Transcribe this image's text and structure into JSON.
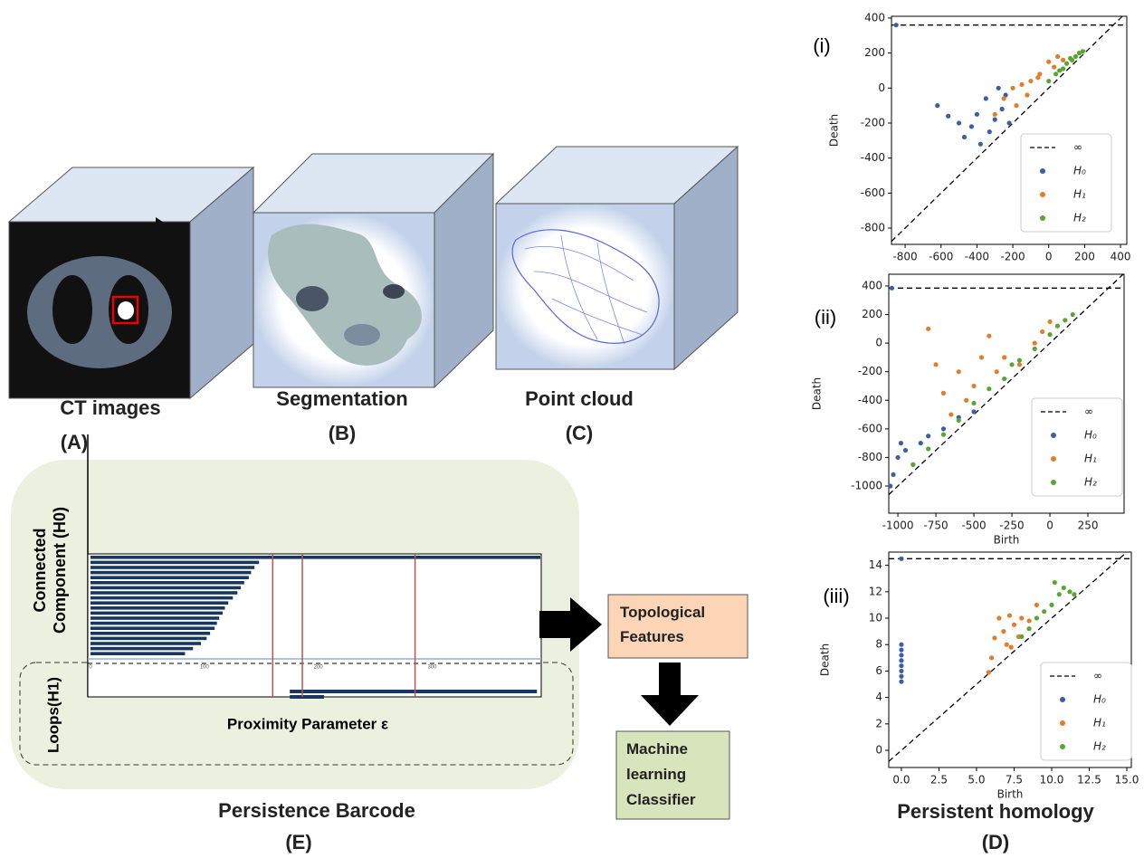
{
  "panels": [
    {
      "title": "CT images",
      "label": "(A)"
    },
    {
      "title": "Segmentation",
      "label": "(B)"
    },
    {
      "title": "Point cloud",
      "label": "(C)"
    }
  ],
  "barcode_panel": {
    "title": "Persistence Barcode",
    "label": "(E)",
    "y_label_h0": [
      "Connected",
      "Component (H0)"
    ],
    "y_label_h1": "Loops(H1)",
    "x_label": "Proximity Parameter ε"
  },
  "flow": {
    "features": [
      "Topological",
      "Features"
    ],
    "classifier": [
      "Machine",
      "learning",
      "Classifier"
    ]
  },
  "homology_panel": {
    "title": "Persistent homology",
    "label": "(D)"
  },
  "chart_data": [
    {
      "type": "scatter",
      "label": "(i)",
      "ylabel": "Death",
      "xlim": [
        -876,
        435
      ],
      "ylim": [
        -893,
        410
      ],
      "xticks": [
        -800,
        -600,
        -400,
        -200,
        0,
        200,
        400
      ],
      "yticks": [
        -800,
        -600,
        -400,
        -200,
        0,
        200,
        400
      ],
      "infinity": {
        "name": "∞",
        "value": 360
      },
      "series": [
        {
          "name": "H₀",
          "color": "#3b5ea8",
          "x": [
            -850,
            -620,
            -560,
            -500,
            -470,
            -430,
            -400,
            -380,
            -350,
            -330,
            -300,
            -280,
            -260,
            -240,
            -220
          ],
          "values": [
            360,
            -100,
            -160,
            -200,
            -280,
            -220,
            -150,
            -320,
            -60,
            -250,
            -180,
            0,
            -120,
            -40,
            -200
          ]
        },
        {
          "name": "H₁",
          "color": "#e27d2c",
          "x": [
            -300,
            -250,
            -200,
            -150,
            -100,
            -50,
            0,
            30,
            50,
            80,
            -180,
            -120,
            -60
          ],
          "values": [
            -150,
            -60,
            0,
            20,
            40,
            80,
            150,
            120,
            180,
            160,
            -100,
            -40,
            60
          ]
        },
        {
          "name": "H₂",
          "color": "#58a532",
          "x": [
            0,
            40,
            80,
            100,
            130,
            150,
            170,
            190,
            60,
            120
          ],
          "values": [
            40,
            80,
            110,
            140,
            160,
            180,
            200,
            210,
            100,
            170
          ]
        }
      ]
    },
    {
      "type": "scatter",
      "label": "(ii)",
      "ylabel": "Death",
      "xlabel": "Birth",
      "xlim": [
        -1060,
        488
      ],
      "ylim": [
        -1190,
        482
      ],
      "xticks": [
        -1000,
        -750,
        -500,
        -250,
        0,
        250
      ],
      "yticks": [
        -1000,
        -800,
        -600,
        -400,
        -200,
        0,
        200,
        400
      ],
      "infinity": {
        "name": "∞",
        "value": 385
      },
      "series": [
        {
          "name": "H₀",
          "color": "#3b5ea8",
          "x": [
            -1050,
            -1030,
            -1000,
            -980,
            -950,
            -900,
            -850,
            -800,
            -700,
            -600,
            -500,
            -1040
          ],
          "values": [
            -1000,
            -920,
            -800,
            -700,
            -750,
            -850,
            -700,
            -650,
            -600,
            -520,
            -480,
            385
          ]
        },
        {
          "name": "H₁",
          "color": "#e27d2c",
          "x": [
            -800,
            -750,
            -700,
            -650,
            -600,
            -500,
            -450,
            -400,
            -350,
            -300,
            -200,
            -100,
            -50,
            0,
            -550
          ],
          "values": [
            100,
            -150,
            -350,
            -500,
            -200,
            -300,
            -100,
            50,
            -200,
            -100,
            -150,
            0,
            80,
            150,
            -400
          ]
        },
        {
          "name": "H₂",
          "color": "#58a532",
          "x": [
            -900,
            -800,
            -700,
            -600,
            -500,
            -400,
            -300,
            -200,
            -100,
            0,
            100,
            150,
            -250,
            50
          ],
          "values": [
            -850,
            -740,
            -640,
            -540,
            -420,
            -320,
            -250,
            -120,
            -40,
            60,
            160,
            200,
            -150,
            120
          ]
        }
      ]
    },
    {
      "type": "scatter",
      "label": "(iii)",
      "ylabel": "Death",
      "xlabel": "Birth",
      "xlim": [
        -0.84,
        15.3
      ],
      "ylim": [
        -1.3,
        15.0
      ],
      "xticks": [
        {
          "value": 0,
          "label": "0.0"
        },
        {
          "value": 2.5,
          "label": "2.5"
        },
        {
          "value": 5,
          "label": "5.0"
        },
        {
          "value": 7.5,
          "label": "7.5"
        },
        {
          "value": 10,
          "label": "10.0"
        },
        {
          "value": 12.5,
          "label": "12.5"
        },
        {
          "value": 15,
          "label": "15.0"
        }
      ],
      "yticks": [
        0,
        2,
        4,
        6,
        8,
        10,
        12,
        14
      ],
      "infinity": {
        "name": "∞",
        "value": 14.5
      },
      "series": [
        {
          "name": "H₀",
          "color": "#3b5ea8",
          "x": [
            0,
            0,
            0,
            0,
            0,
            0,
            0,
            0,
            0
          ],
          "values": [
            5.2,
            5.6,
            6.0,
            6.4,
            6.8,
            7.2,
            7.6,
            8.0,
            14.5
          ]
        },
        {
          "name": "H₁",
          "color": "#e27d2c",
          "x": [
            5.8,
            6.0,
            6.2,
            6.5,
            6.8,
            7.0,
            7.2,
            7.5,
            7.8,
            8.0,
            8.5,
            9.0,
            7.3
          ],
          "values": [
            5.9,
            7.0,
            8.5,
            10.0,
            9.0,
            8.0,
            10.2,
            9.5,
            8.6,
            10.0,
            9.8,
            11.0,
            7.8
          ]
        },
        {
          "name": "H₂",
          "color": "#58a532",
          "x": [
            8.0,
            8.5,
            9.0,
            9.5,
            10.0,
            10.2,
            10.5,
            10.8,
            11.2,
            11.5
          ],
          "values": [
            8.6,
            9.2,
            10.0,
            10.5,
            11.0,
            12.7,
            11.8,
            12.3,
            12.0,
            11.8
          ]
        }
      ]
    },
    {
      "type": "barcode",
      "xlim": [
        0,
        395
      ],
      "xticks": [
        0,
        100,
        200,
        300
      ],
      "color": "#17375e",
      "threshold_color": "#b85450",
      "thresholds": [
        160,
        186,
        285
      ],
      "h0": {
        "deaths": [
          395,
          148,
          144,
          141,
          139,
          135,
          132,
          129,
          125,
          121,
          118,
          116,
          113,
          111,
          109,
          105,
          102,
          97,
          90,
          83
        ]
      },
      "h1": {
        "births": [
          175,
          175
        ],
        "deaths": [
          392,
          205
        ]
      }
    }
  ]
}
